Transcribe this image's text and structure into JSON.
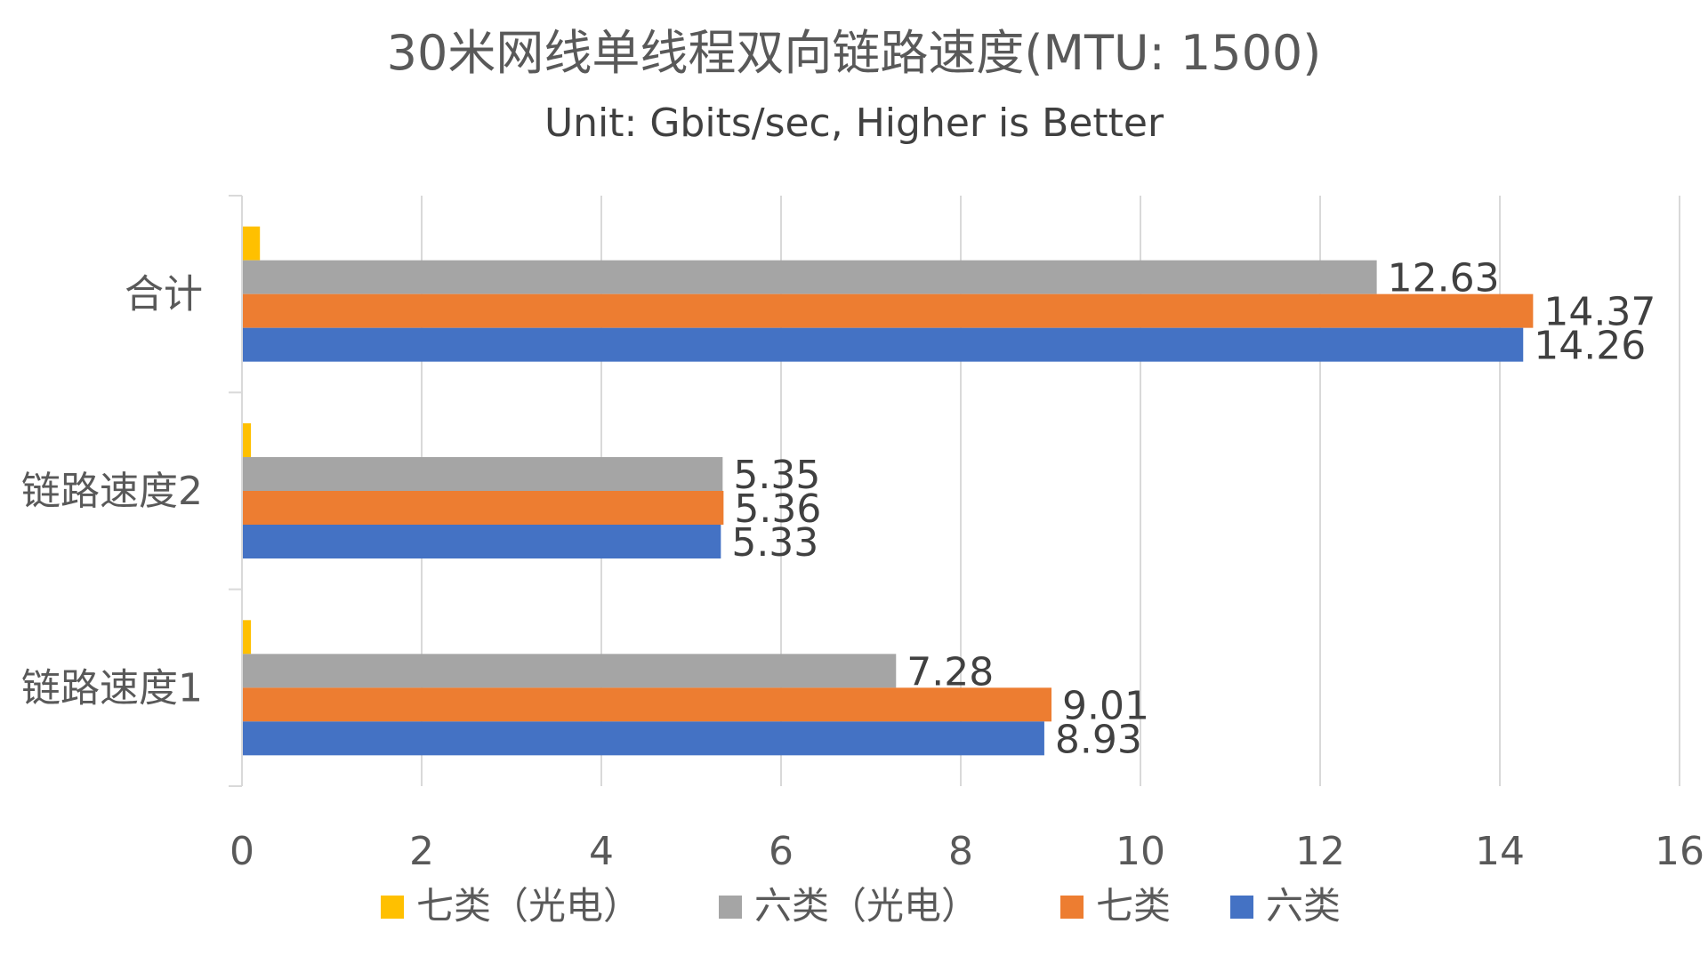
{
  "chart_data": {
    "type": "bar",
    "orientation": "horizontal",
    "title": "30米网线单线程双向链路速度(MTU: 1500)",
    "subtitle": "Unit: Gbits/sec, Higher is Better",
    "categories": [
      "合计",
      "链路速度2",
      "链路速度1"
    ],
    "series": [
      {
        "name": "七类（光电）",
        "color": "#FFC000",
        "values": [
          0.2,
          0.1,
          0.1
        ]
      },
      {
        "name": "六类（光电）",
        "color": "#A5A5A5",
        "values": [
          12.63,
          5.35,
          7.28
        ]
      },
      {
        "name": "七类",
        "color": "#ED7D31",
        "values": [
          14.37,
          5.36,
          9.01
        ]
      },
      {
        "name": "六类",
        "color": "#4472C4",
        "values": [
          14.26,
          5.33,
          8.93
        ]
      }
    ],
    "data_labels": [
      [
        "",
        "",
        ""
      ],
      [
        "12.63",
        "5.35",
        "7.28"
      ],
      [
        "14.37",
        "5.36",
        "9.01"
      ],
      [
        "14.26",
        "5.33",
        "8.93"
      ]
    ],
    "xlim": [
      0,
      16
    ],
    "x_ticks": [
      "0",
      "2",
      "4",
      "6",
      "8",
      "10",
      "12",
      "14",
      "16"
    ],
    "grid": true,
    "legend_position": "bottom"
  }
}
